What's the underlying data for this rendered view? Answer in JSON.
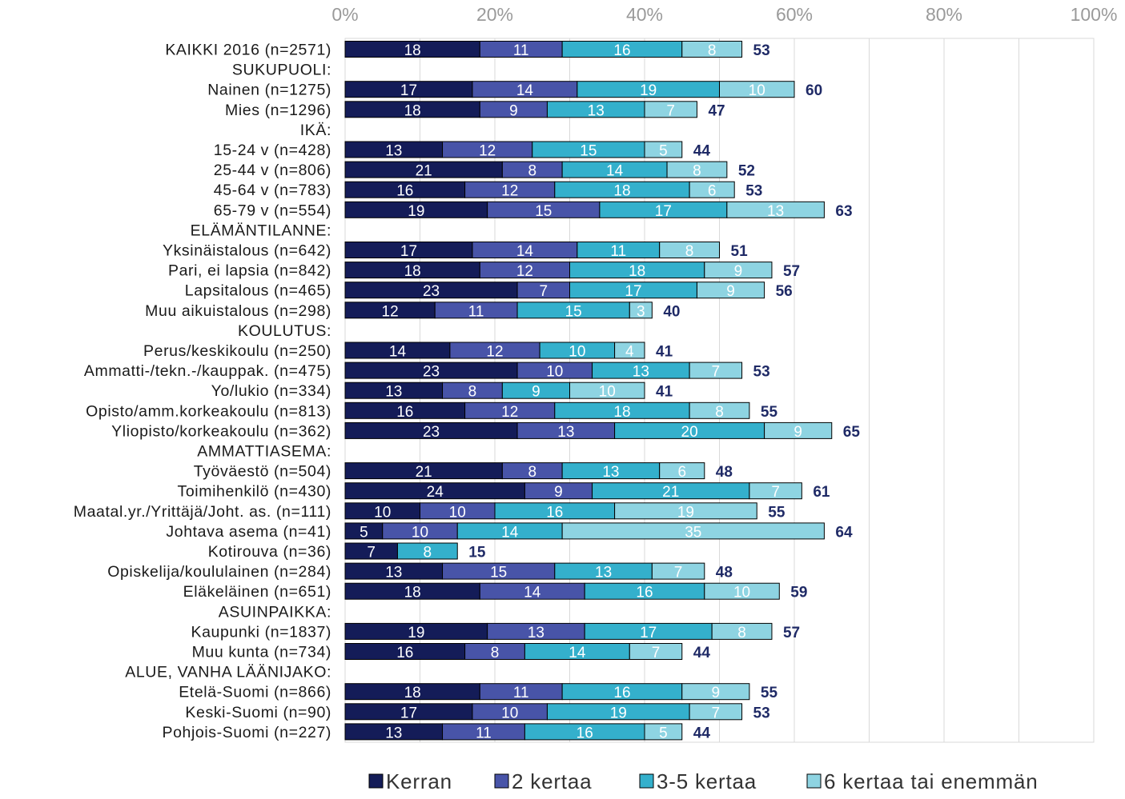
{
  "chart_data": {
    "type": "bar",
    "orientation": "horizontal",
    "stacked": true,
    "xlim": [
      0,
      100
    ],
    "x_ticks": [
      "0%",
      "20%",
      "40%",
      "60%",
      "80%",
      "100%"
    ],
    "grid": true,
    "legend_position": "bottom",
    "title": "",
    "xlabel": "",
    "ylabel": "",
    "colors": [
      "#141C58",
      "#4854A8",
      "#34B0CC",
      "#8ED4E2"
    ],
    "series_names": [
      "Kerran",
      "2 kertaa",
      "3-5 kertaa",
      "6 kertaa tai enemmän"
    ],
    "rows": [
      {
        "label": "KAIKKI 2016 (n=2571)",
        "values": [
          18,
          11,
          16,
          8
        ],
        "total": 53
      },
      {
        "label": "SUKUPUOLI:",
        "header": true
      },
      {
        "label": "Nainen (n=1275)",
        "values": [
          17,
          14,
          19,
          10
        ],
        "total": 60
      },
      {
        "label": "Mies (n=1296)",
        "values": [
          18,
          9,
          13,
          7
        ],
        "total": 47
      },
      {
        "label": "IKÄ:",
        "header": true
      },
      {
        "label": "15-24 v (n=428)",
        "values": [
          13,
          12,
          15,
          5
        ],
        "total": 44
      },
      {
        "label": "25-44 v (n=806)",
        "values": [
          21,
          8,
          14,
          8
        ],
        "total": 52
      },
      {
        "label": "45-64 v (n=783)",
        "values": [
          16,
          12,
          18,
          6
        ],
        "total": 53
      },
      {
        "label": "65-79 v (n=554)",
        "values": [
          19,
          15,
          17,
          13
        ],
        "total": 63
      },
      {
        "label": "ELÄMÄNTILANNE:",
        "header": true
      },
      {
        "label": "Yksinäistalous (n=642)",
        "values": [
          17,
          14,
          11,
          8
        ],
        "total": 51
      },
      {
        "label": "Pari, ei lapsia (n=842)",
        "values": [
          18,
          12,
          18,
          9
        ],
        "total": 57
      },
      {
        "label": "Lapsitalous (n=465)",
        "values": [
          23,
          7,
          17,
          9
        ],
        "total": 56
      },
      {
        "label": "Muu aikuistalous (n=298)",
        "values": [
          12,
          11,
          15,
          3
        ],
        "total": 40
      },
      {
        "label": "KOULUTUS:",
        "header": true
      },
      {
        "label": "Perus/keskikoulu (n=250)",
        "values": [
          14,
          12,
          10,
          4
        ],
        "total": 41
      },
      {
        "label": "Ammatti-/tekn.-/kauppak. (n=475)",
        "values": [
          23,
          10,
          13,
          7
        ],
        "total": 53
      },
      {
        "label": "Yo/lukio (n=334)",
        "values": [
          13,
          8,
          9,
          10
        ],
        "total": 41
      },
      {
        "label": "Opisto/amm.korkeakoulu (n=813)",
        "values": [
          16,
          12,
          18,
          8
        ],
        "total": 55
      },
      {
        "label": "Yliopisto/korkeakoulu (n=362)",
        "values": [
          23,
          13,
          20,
          9
        ],
        "total": 65
      },
      {
        "label": "AMMATTIASEMA:",
        "header": true
      },
      {
        "label": "Työväestö (n=504)",
        "values": [
          21,
          8,
          13,
          6
        ],
        "total": 48
      },
      {
        "label": "Toimihenkilö (n=430)",
        "values": [
          24,
          9,
          21,
          7
        ],
        "total": 61
      },
      {
        "label": "Maatal.yr./Yrittäjä/Joht. as. (n=111)",
        "values": [
          10,
          10,
          16,
          19
        ],
        "total": 55
      },
      {
        "label": "Johtava asema (n=41)",
        "values": [
          5,
          10,
          14,
          35
        ],
        "total": 64
      },
      {
        "label": "Kotirouva (n=36)",
        "values": [
          7,
          null,
          8,
          null
        ],
        "total": 15
      },
      {
        "label": "Opiskelija/koululainen (n=284)",
        "values": [
          13,
          15,
          13,
          7
        ],
        "total": 48
      },
      {
        "label": "Eläkeläinen (n=651)",
        "values": [
          18,
          14,
          16,
          10
        ],
        "total": 59
      },
      {
        "label": "ASUINPAIKKA:",
        "header": true
      },
      {
        "label": "Kaupunki (n=1837)",
        "values": [
          19,
          13,
          17,
          8
        ],
        "total": 57
      },
      {
        "label": "Muu kunta (n=734)",
        "values": [
          16,
          8,
          14,
          7
        ],
        "total": 44
      },
      {
        "label": "ALUE, VANHA LÄÄNIJAKO:",
        "header": true
      },
      {
        "label": "Etelä-Suomi (n=866)",
        "values": [
          18,
          11,
          16,
          9
        ],
        "total": 55
      },
      {
        "label": "Keski-Suomi (n=90)",
        "values": [
          17,
          10,
          19,
          7
        ],
        "total": 53
      },
      {
        "label": "Pohjois-Suomi (n=227)",
        "values": [
          13,
          11,
          16,
          5
        ],
        "total": 44
      }
    ]
  }
}
